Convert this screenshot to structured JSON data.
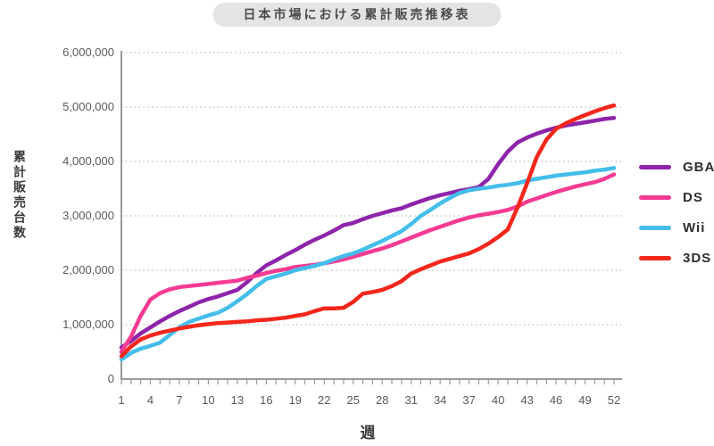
{
  "title": "日本市場における累計販売推移表",
  "chart_data": {
    "type": "line",
    "title": "日本市場における累計販売推移表",
    "xlabel": "週",
    "ylabel": "累計販売台数",
    "weeks": 52,
    "xlim": [
      1,
      52
    ],
    "ylim": [
      0,
      6000000
    ],
    "grid": "horizontal-dotted",
    "legend_position": "right",
    "x_axis": {
      "label": "週",
      "tick_weeks": [
        1,
        4,
        7,
        10,
        13,
        16,
        19,
        22,
        25,
        28,
        31,
        34,
        37,
        40,
        43,
        46,
        49,
        52
      ],
      "tick_labels": [
        "1",
        "4",
        "7",
        "10",
        "13",
        "16",
        "19",
        "22",
        "25",
        "28",
        "31",
        "34",
        "37",
        "40",
        "43",
        "46",
        "49",
        "52"
      ]
    },
    "y_axis": {
      "label": "累計販売台数",
      "tick_values": [
        0,
        1000000,
        2000000,
        3000000,
        4000000,
        5000000,
        6000000
      ],
      "tick_labels": [
        "0",
        "1,000,000",
        "2,000,000",
        "3,000,000",
        "4,000,000",
        "5,000,000",
        "6,000,000"
      ]
    },
    "series": [
      {
        "name": "GBA",
        "color": "#8E24AA",
        "values": [
          580000,
          700000,
          840000,
          950000,
          1060000,
          1160000,
          1250000,
          1330000,
          1410000,
          1470000,
          1520000,
          1580000,
          1640000,
          1780000,
          1950000,
          2090000,
          2180000,
          2280000,
          2370000,
          2470000,
          2560000,
          2640000,
          2730000,
          2830000,
          2870000,
          2940000,
          3000000,
          3050000,
          3100000,
          3140000,
          3210000,
          3270000,
          3330000,
          3380000,
          3420000,
          3460000,
          3490000,
          3530000,
          3680000,
          3950000,
          4180000,
          4350000,
          4440000,
          4510000,
          4570000,
          4620000,
          4660000,
          4690000,
          4720000,
          4750000,
          4780000,
          4800000
        ]
      },
      {
        "name": "DS",
        "color": "#F43B93",
        "values": [
          500000,
          780000,
          1160000,
          1460000,
          1580000,
          1650000,
          1690000,
          1710000,
          1730000,
          1750000,
          1770000,
          1790000,
          1810000,
          1860000,
          1900000,
          1950000,
          1990000,
          2020000,
          2060000,
          2080000,
          2100000,
          2130000,
          2160000,
          2200000,
          2250000,
          2300000,
          2350000,
          2400000,
          2460000,
          2530000,
          2600000,
          2670000,
          2740000,
          2800000,
          2860000,
          2920000,
          2970000,
          3010000,
          3040000,
          3070000,
          3110000,
          3170000,
          3260000,
          3320000,
          3380000,
          3440000,
          3490000,
          3540000,
          3580000,
          3620000,
          3680000,
          3760000
        ]
      },
      {
        "name": "Wii",
        "color": "#44BDEA",
        "values": [
          360000,
          480000,
          560000,
          610000,
          670000,
          810000,
          950000,
          1050000,
          1110000,
          1170000,
          1220000,
          1310000,
          1430000,
          1560000,
          1710000,
          1840000,
          1890000,
          1940000,
          2000000,
          2040000,
          2080000,
          2130000,
          2200000,
          2260000,
          2310000,
          2380000,
          2460000,
          2540000,
          2630000,
          2720000,
          2850000,
          3000000,
          3110000,
          3230000,
          3330000,
          3420000,
          3470000,
          3500000,
          3520000,
          3550000,
          3570000,
          3600000,
          3650000,
          3680000,
          3710000,
          3740000,
          3760000,
          3780000,
          3800000,
          3830000,
          3850000,
          3880000
        ]
      },
      {
        "name": "3DS",
        "color": "#F3271C",
        "values": [
          420000,
          600000,
          730000,
          800000,
          850000,
          890000,
          930000,
          960000,
          990000,
          1010000,
          1030000,
          1040000,
          1050000,
          1060000,
          1080000,
          1090000,
          1110000,
          1130000,
          1160000,
          1190000,
          1250000,
          1300000,
          1300000,
          1310000,
          1420000,
          1570000,
          1600000,
          1640000,
          1710000,
          1800000,
          1940000,
          2020000,
          2090000,
          2160000,
          2210000,
          2260000,
          2310000,
          2390000,
          2490000,
          2610000,
          2750000,
          3150000,
          3600000,
          4080000,
          4400000,
          4600000,
          4700000,
          4780000,
          4850000,
          4920000,
          4980000,
          5030000
        ]
      }
    ]
  },
  "legend": {
    "items": [
      {
        "label": "GBA",
        "color": "#8E24AA"
      },
      {
        "label": "DS",
        "color": "#F43B93"
      },
      {
        "label": "Wii",
        "color": "#44BDEA"
      },
      {
        "label": "3DS",
        "color": "#F3271C"
      }
    ]
  }
}
